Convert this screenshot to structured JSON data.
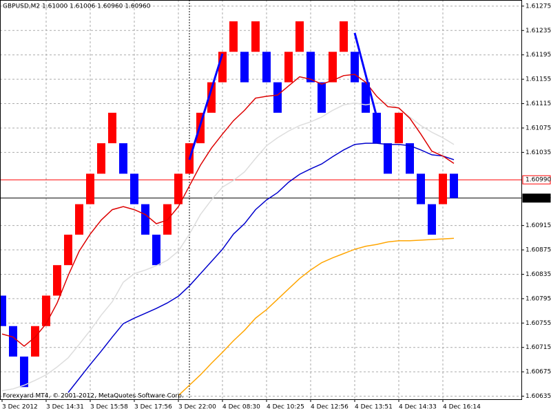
{
  "chart_data": {
    "type": "renko",
    "title": "GBPUSD,M2  1.61000 1.61006 1.60960 1.60960",
    "footer": "Forexyard MT4, © 2001-2012, MetaQuotes Software Corp.",
    "categories": [
      "3 Dec 2012",
      null,
      null,
      null,
      "3 Dec 14:31",
      null,
      null,
      null,
      "3 Dec 15:58",
      null,
      null,
      null,
      "3 Dec 17:56",
      null,
      null,
      null,
      "3 Dec 22:00",
      null,
      null,
      null,
      "4 Dec 08:30",
      null,
      null,
      null,
      "4 Dec 10:25",
      null,
      null,
      null,
      "4 Dec 12:56",
      null,
      null,
      null,
      "4 Dec 13:51",
      null,
      null,
      null,
      "4 Dec 14:33",
      null,
      null,
      null,
      "4 Dec 16:14",
      null
    ],
    "open": [
      1.608,
      1.6075,
      1.607,
      1.607,
      1.6075,
      1.608,
      1.6085,
      1.609,
      1.6095,
      1.61,
      1.6105,
      1.6105,
      1.61,
      1.6095,
      1.609,
      1.609,
      1.6095,
      1.61,
      1.6105,
      1.611,
      1.6115,
      1.612,
      1.612,
      1.612,
      1.612,
      1.6115,
      1.6115,
      1.612,
      1.612,
      1.6115,
      1.6115,
      1.612,
      1.612,
      1.6115,
      1.611,
      1.6105,
      1.6105,
      1.6105,
      1.61,
      1.6095,
      1.6095,
      1.61
    ],
    "close": [
      1.6075,
      1.607,
      1.6065,
      1.6075,
      1.608,
      1.6085,
      1.609,
      1.6095,
      1.61,
      1.6105,
      1.611,
      1.61,
      1.6095,
      1.609,
      1.6085,
      1.6095,
      1.61,
      1.6105,
      1.611,
      1.6115,
      1.612,
      1.6125,
      1.6115,
      1.6125,
      1.6115,
      1.611,
      1.612,
      1.6125,
      1.6115,
      1.611,
      1.612,
      1.6125,
      1.6115,
      1.611,
      1.6105,
      1.61,
      1.611,
      1.61,
      1.6095,
      1.609,
      1.61,
      1.6096
    ],
    "up_color": "#ff0000",
    "down_color": "#0000ff",
    "series": [
      {
        "color": "#dddddd",
        "values": [
          1.60644,
          1.60647,
          1.60653,
          1.60661,
          1.6067,
          1.60683,
          1.60698,
          1.6072,
          1.60743,
          1.60768,
          1.6079,
          1.60822,
          1.60836,
          1.60842,
          1.60849,
          1.60858,
          1.60873,
          1.60901,
          1.60933,
          1.60957,
          1.60978,
          1.60989,
          1.61003,
          1.61025,
          1.61046,
          1.61059,
          1.6107,
          1.61079,
          1.61085,
          1.61093,
          1.61104,
          1.61113,
          1.61116,
          1.61113,
          1.61116,
          1.61116,
          1.61107,
          1.61093,
          1.61079,
          1.61068,
          1.61059,
          1.61048
        ]
      },
      {
        "color": "#ffa500",
        "values": [
          null,
          null,
          null,
          null,
          null,
          null,
          null,
          null,
          null,
          null,
          null,
          null,
          null,
          null,
          null,
          null,
          1.60636,
          1.60653,
          1.6067,
          1.60689,
          1.60707,
          1.60726,
          1.60743,
          1.60763,
          1.60777,
          1.60794,
          1.60811,
          1.60828,
          1.60842,
          1.60854,
          1.60862,
          1.60869,
          1.60876,
          1.60881,
          1.60884,
          1.60888,
          1.6089,
          1.6089,
          1.60891,
          1.60892,
          1.60893,
          1.60894
        ]
      },
      {
        "color": "#0000cc",
        "values": [
          null,
          null,
          null,
          null,
          null,
          null,
          1.60641,
          1.60664,
          1.60687,
          1.60709,
          1.60732,
          1.60754,
          1.60763,
          1.60771,
          1.60779,
          1.60788,
          1.60799,
          1.60816,
          1.60836,
          1.60856,
          1.60876,
          1.60901,
          1.60918,
          1.60941,
          1.60957,
          1.60969,
          1.60986,
          1.60999,
          1.61008,
          1.61016,
          1.61028,
          1.61039,
          1.61048,
          1.6105,
          1.6105,
          1.61048,
          1.61048,
          1.61046,
          1.61039,
          1.61031,
          1.61029,
          1.61023
        ]
      },
      {
        "color": "#dd0000",
        "values": [
          1.60737,
          1.60732,
          1.60717,
          1.60732,
          1.60754,
          1.60788,
          1.60833,
          1.60873,
          1.60901,
          1.60924,
          1.60941,
          1.60946,
          1.60941,
          1.60933,
          1.60918,
          1.60924,
          1.60946,
          1.6098,
          1.61014,
          1.61042,
          1.61065,
          1.61087,
          1.61104,
          1.61124,
          1.61127,
          1.61129,
          1.61144,
          1.61159,
          1.61155,
          1.61147,
          1.61153,
          1.61161,
          1.61163,
          1.6115,
          1.61127,
          1.6111,
          1.61108,
          1.61091,
          1.61065,
          1.61037,
          1.61029,
          1.61017
        ]
      },
      {
        "color": "#0000ff",
        "width": 3,
        "values": [
          null,
          null,
          null,
          null,
          null,
          null,
          null,
          null,
          null,
          null,
          null,
          null,
          null,
          null,
          null,
          null,
          null,
          1.61023,
          1.61081,
          1.61139,
          1.61197,
          null,
          null,
          null,
          null,
          null,
          null,
          null,
          null,
          null,
          null,
          null,
          1.61231,
          1.61162,
          1.61093,
          null,
          null,
          null,
          null,
          null,
          null,
          null
        ]
      }
    ],
    "price_lines": [
      {
        "value": 1.6099,
        "label": "1.60990",
        "color": "#ff0000"
      },
      {
        "value": 1.6096,
        "label": "1.60960",
        "color": "#000000"
      }
    ],
    "ylim": [
      1.6063,
      1.61285
    ],
    "yticks": [
      1.60635,
      1.60675,
      1.60715,
      1.60755,
      1.60795,
      1.60835,
      1.60875,
      1.60915,
      1.61035,
      1.61075,
      1.61115,
      1.61155,
      1.61195,
      1.61235,
      1.61275
    ],
    "grid": true
  }
}
